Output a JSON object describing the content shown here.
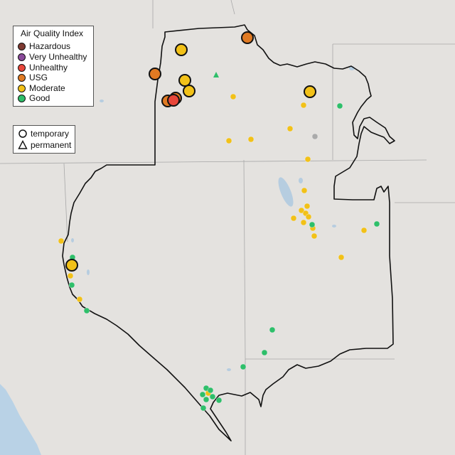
{
  "legend": {
    "title": "Air Quality Index",
    "categories": [
      {
        "label": "Hazardous",
        "color": "#7e3a32"
      },
      {
        "label": "Very Unhealthy",
        "color": "#8a4a9a"
      },
      {
        "label": "Unhealthy",
        "color": "#e8463a"
      },
      {
        "label": "USG",
        "color": "#e07a23"
      },
      {
        "label": "Moderate",
        "color": "#f2c118"
      },
      {
        "label": "Good",
        "color": "#2ebf6a"
      }
    ]
  },
  "type_legend": {
    "temporary": "temporary",
    "permanent": "permanent"
  },
  "colors": {
    "Hazardous": "#7e3a32",
    "Very Unhealthy": "#8a4a9a",
    "Unhealthy": "#e8463a",
    "USG": "#e07a23",
    "Moderate": "#f2c118",
    "Good": "#2ebf6a",
    "Unknown": "#aaaaaa"
  }
}
